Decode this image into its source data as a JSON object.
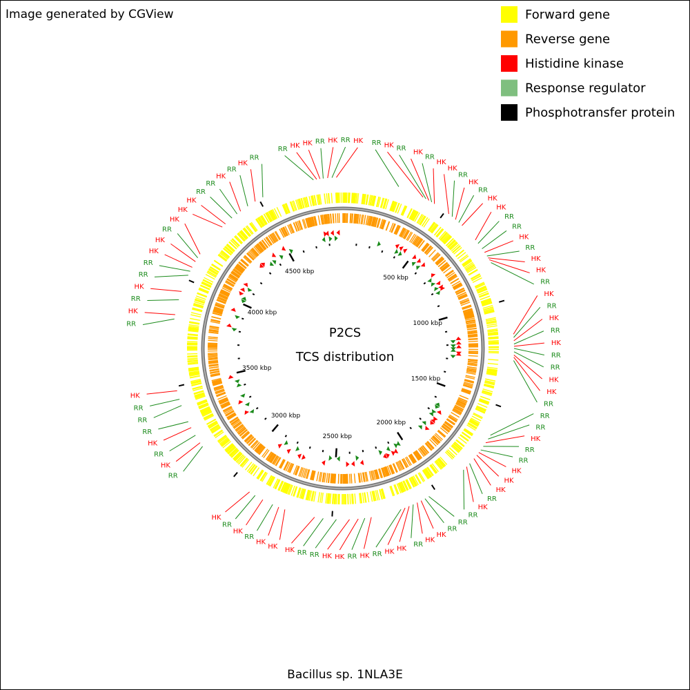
{
  "header": {
    "credit": "Image generated by CGView"
  },
  "legend": [
    {
      "label": "Forward gene",
      "color": "#ffff00"
    },
    {
      "label": "Reverse gene",
      "color": "#ff9900"
    },
    {
      "label": "Histidine kinase",
      "color": "#ff0000"
    },
    {
      "label": "Response regulator",
      "color": "#7fbf7f"
    },
    {
      "label": "Phosphotransfer protein",
      "color": "#000000"
    }
  ],
  "center": {
    "title": "P2CS",
    "subtitle": "TCS distribution"
  },
  "footer": {
    "organism": "Bacillus sp. 1NLA3E"
  },
  "genome_length_kbp": 4900,
  "ticks": [
    {
      "value": 500,
      "label": "500 kbp"
    },
    {
      "value": 1000,
      "label": "1000 kbp"
    },
    {
      "value": 1500,
      "label": "1500 kbp"
    },
    {
      "value": 2000,
      "label": "2000 kbp"
    },
    {
      "value": 2500,
      "label": "2500 kbp"
    },
    {
      "value": 3000,
      "label": "3000 kbp"
    },
    {
      "value": 3500,
      "label": "3500 kbp"
    },
    {
      "value": 4000,
      "label": "4000 kbp"
    },
    {
      "value": 4500,
      "label": "4500 kbp"
    }
  ],
  "features": [
    {
      "type": "RR",
      "kbp": 4765
    },
    {
      "type": "HK",
      "kbp": 4780
    },
    {
      "type": "HK",
      "kbp": 4795
    },
    {
      "type": "RR",
      "kbp": 4810
    },
    {
      "type": "HK",
      "kbp": 4830
    },
    {
      "type": "RR",
      "kbp": 4850
    },
    {
      "type": "HK",
      "kbp": 4870
    },
    {
      "type": "RR",
      "kbp": 259
    },
    {
      "type": "HK",
      "kbp": 380
    },
    {
      "type": "RR",
      "kbp": 395
    },
    {
      "type": "HK",
      "kbp": 410
    },
    {
      "type": "RR",
      "kbp": 425
    },
    {
      "type": "HK",
      "kbp": 440
    },
    {
      "type": "HK",
      "kbp": 520
    },
    {
      "type": "RR",
      "kbp": 540
    },
    {
      "type": "HK",
      "kbp": 560
    },
    {
      "type": "RR",
      "kbp": 580
    },
    {
      "type": "HK",
      "kbp": 600
    },
    {
      "type": "HK",
      "kbp": 690
    },
    {
      "type": "RR",
      "kbp": 710
    },
    {
      "type": "RR",
      "kbp": 740
    },
    {
      "type": "HK",
      "kbp": 760
    },
    {
      "type": "RR",
      "kbp": 780
    },
    {
      "type": "HK",
      "kbp": 790
    },
    {
      "type": "HK",
      "kbp": 800
    },
    {
      "type": "RR",
      "kbp": 815
    },
    {
      "type": "HK",
      "kbp": 1160
    },
    {
      "type": "RR",
      "kbp": 1175
    },
    {
      "type": "HK",
      "kbp": 1190
    },
    {
      "type": "RR",
      "kbp": 1205
    },
    {
      "type": "HK",
      "kbp": 1215
    },
    {
      "type": "RR",
      "kbp": 1225
    },
    {
      "type": "RR",
      "kbp": 1240
    },
    {
      "type": "HK",
      "kbp": 1255
    },
    {
      "type": "HK",
      "kbp": 1265
    },
    {
      "type": "RR",
      "kbp": 1280
    },
    {
      "type": "RR",
      "kbp": 1640
    },
    {
      "type": "RR",
      "kbp": 1660
    },
    {
      "type": "HK",
      "kbp": 1680
    },
    {
      "type": "RR",
      "kbp": 1700
    },
    {
      "type": "RR",
      "kbp": 1720
    },
    {
      "type": "HK",
      "kbp": 1735
    },
    {
      "type": "HK",
      "kbp": 1750
    },
    {
      "type": "HK",
      "kbp": 1770
    },
    {
      "type": "RR",
      "kbp": 1800
    },
    {
      "type": "HK",
      "kbp": 1820
    },
    {
      "type": "RR",
      "kbp": 1840
    },
    {
      "type": "RR",
      "kbp": 2040
    },
    {
      "type": "RR",
      "kbp": 2060
    },
    {
      "type": "HK",
      "kbp": 2080
    },
    {
      "type": "HK",
      "kbp": 2100
    },
    {
      "type": "RR",
      "kbp": 2120
    },
    {
      "type": "HK",
      "kbp": 2140
    },
    {
      "type": "HK",
      "kbp": 2160
    },
    {
      "type": "RR",
      "kbp": 2180
    },
    {
      "type": "HK",
      "kbp": 2320
    },
    {
      "type": "RR",
      "kbp": 2350
    },
    {
      "type": "HK",
      "kbp": 2380
    },
    {
      "type": "HK",
      "kbp": 2420
    },
    {
      "type": "RR",
      "kbp": 2480
    },
    {
      "type": "RR",
      "kbp": 2540
    },
    {
      "type": "HK",
      "kbp": 2580
    },
    {
      "type": "HK",
      "kbp": 2720
    },
    {
      "type": "HK",
      "kbp": 2750
    },
    {
      "type": "RR",
      "kbp": 2780
    },
    {
      "type": "HK",
      "kbp": 2830
    },
    {
      "type": "RR",
      "kbp": 2870
    },
    {
      "type": "HK",
      "kbp": 2900
    },
    {
      "type": "RR",
      "kbp": 3200
    },
    {
      "type": "HK",
      "kbp": 3220
    },
    {
      "type": "RR",
      "kbp": 3260
    },
    {
      "type": "HK",
      "kbp": 3300
    },
    {
      "type": "RR",
      "kbp": 3330
    },
    {
      "type": "RR",
      "kbp": 3410
    },
    {
      "type": "RR",
      "kbp": 3440
    },
    {
      "type": "HK",
      "kbp": 3480
    },
    {
      "type": "RR",
      "kbp": 3810
    },
    {
      "type": "HK",
      "kbp": 3830
    },
    {
      "type": "RR",
      "kbp": 3900
    },
    {
      "type": "HK",
      "kbp": 3940
    },
    {
      "type": "RR",
      "kbp": 4020
    },
    {
      "type": "RR",
      "kbp": 4040
    },
    {
      "type": "HK",
      "kbp": 4060
    },
    {
      "type": "HK",
      "kbp": 4090
    },
    {
      "type": "RR",
      "kbp": 4110
    },
    {
      "type": "HK",
      "kbp": 4130
    },
    {
      "type": "HK",
      "kbp": 4290
    },
    {
      "type": "HK",
      "kbp": 4310
    },
    {
      "type": "RR",
      "kbp": 4350
    },
    {
      "type": "RR",
      "kbp": 4380
    },
    {
      "type": "HK",
      "kbp": 4400
    },
    {
      "type": "RR",
      "kbp": 4440
    },
    {
      "type": "HK",
      "kbp": 4480
    },
    {
      "type": "RR",
      "kbp": 4520
    }
  ]
}
